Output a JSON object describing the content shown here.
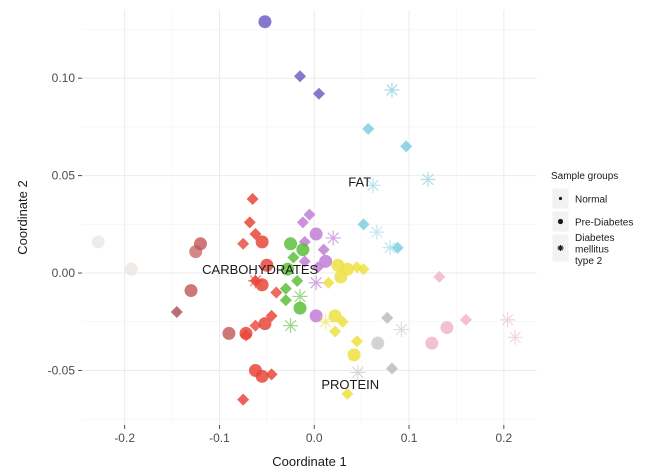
{
  "chart_data": {
    "type": "scatter",
    "xlabel": "Coordinate 1",
    "ylabel": "Coordinate 2",
    "xlim": [
      -0.245,
      0.235
    ],
    "ylim": [
      -0.078,
      0.135
    ],
    "xticks": [
      "-0.2",
      "-0.1",
      "0.0",
      "0.1",
      "0.2"
    ],
    "xtick_values": [
      -0.2,
      -0.1,
      0.0,
      0.1,
      0.2
    ],
    "yticks": [
      "-0.05",
      "0.00",
      "0.05",
      "0.10"
    ],
    "ytick_values": [
      -0.05,
      0.0,
      0.05,
      0.1
    ],
    "grid": true,
    "legend": {
      "title": "Sample groups",
      "placement": "right",
      "entries": [
        {
          "label": "Normal",
          "shape": "dot"
        },
        {
          "label": "Pre-Diabetes",
          "shape": "dot-large"
        },
        {
          "label_lines": [
            "Diabetes",
            "mellitus",
            "type 2"
          ],
          "shape": "asterisk"
        }
      ]
    },
    "annotations": [
      {
        "text": "FAT",
        "x": 0.048,
        "y": 0.047
      },
      {
        "text": "CARBOHYDRATES",
        "x": -0.057,
        "y": 0.002
      },
      {
        "text": "PROTEIN",
        "x": 0.038,
        "y": -0.057
      }
    ],
    "points": [
      {
        "x": -0.052,
        "y": 0.129,
        "shape": "circle",
        "color": "#7b68c9",
        "alpha": 0.9
      },
      {
        "x": -0.015,
        "y": 0.101,
        "shape": "diamond",
        "color": "#7b68c9",
        "alpha": 0.9
      },
      {
        "x": 0.005,
        "y": 0.092,
        "shape": "diamond",
        "color": "#7b68c9",
        "alpha": 0.9
      },
      {
        "x": 0.082,
        "y": 0.094,
        "shape": "asterisk",
        "color": "#8fd2e0",
        "alpha": 0.8
      },
      {
        "x": 0.057,
        "y": 0.074,
        "shape": "diamond",
        "color": "#7ccfe0",
        "alpha": 0.85
      },
      {
        "x": 0.097,
        "y": 0.065,
        "shape": "diamond",
        "color": "#7ccfe0",
        "alpha": 0.85
      },
      {
        "x": 0.12,
        "y": 0.048,
        "shape": "asterisk",
        "color": "#8fd2e0",
        "alpha": 0.7
      },
      {
        "x": 0.062,
        "y": 0.045,
        "shape": "asterisk",
        "color": "#8fd2e0",
        "alpha": 0.6
      },
      {
        "x": 0.052,
        "y": 0.025,
        "shape": "diamond",
        "color": "#7ccfe0",
        "alpha": 0.85
      },
      {
        "x": 0.088,
        "y": 0.013,
        "shape": "diamond",
        "color": "#7ccfe0",
        "alpha": 0.85
      },
      {
        "x": 0.08,
        "y": 0.013,
        "shape": "asterisk",
        "color": "#8fd2e0",
        "alpha": 0.6
      },
      {
        "x": 0.066,
        "y": 0.021,
        "shape": "asterisk",
        "color": "#8fd2e0",
        "alpha": 0.5
      },
      {
        "x": -0.065,
        "y": 0.038,
        "shape": "diamond",
        "color": "#e8473a",
        "alpha": 0.85
      },
      {
        "x": -0.068,
        "y": 0.026,
        "shape": "diamond",
        "color": "#e8473a",
        "alpha": 0.85
      },
      {
        "x": -0.062,
        "y": 0.02,
        "shape": "diamond",
        "color": "#e8473a",
        "alpha": 0.85
      },
      {
        "x": -0.055,
        "y": 0.016,
        "shape": "circle",
        "color": "#e8473a",
        "alpha": 0.85
      },
      {
        "x": -0.075,
        "y": 0.015,
        "shape": "diamond",
        "color": "#e8473a",
        "alpha": 0.8
      },
      {
        "x": -0.12,
        "y": 0.015,
        "shape": "circle",
        "color": "#c05555",
        "alpha": 0.8
      },
      {
        "x": -0.125,
        "y": 0.011,
        "shape": "circle",
        "color": "#c05555",
        "alpha": 0.7
      },
      {
        "x": -0.05,
        "y": 0.004,
        "shape": "circle",
        "color": "#e8473a",
        "alpha": 0.85
      },
      {
        "x": -0.062,
        "y": -0.004,
        "shape": "diamond",
        "color": "#e8473a",
        "alpha": 0.85
      },
      {
        "x": -0.062,
        "y": -0.004,
        "shape": "asterisk",
        "color": "#e8473a",
        "alpha": 0.7
      },
      {
        "x": -0.055,
        "y": -0.006,
        "shape": "circle",
        "color": "#e8473a",
        "alpha": 0.85
      },
      {
        "x": -0.04,
        "y": -0.01,
        "shape": "diamond",
        "color": "#e8473a",
        "alpha": 0.8
      },
      {
        "x": -0.13,
        "y": -0.009,
        "shape": "circle",
        "color": "#c05555",
        "alpha": 0.8
      },
      {
        "x": -0.145,
        "y": -0.02,
        "shape": "diamond",
        "color": "#b05560",
        "alpha": 0.85
      },
      {
        "x": -0.045,
        "y": -0.022,
        "shape": "diamond",
        "color": "#e8473a",
        "alpha": 0.85
      },
      {
        "x": -0.052,
        "y": -0.026,
        "shape": "circle",
        "color": "#e8473a",
        "alpha": 0.85
      },
      {
        "x": -0.062,
        "y": -0.027,
        "shape": "diamond",
        "color": "#e8473a",
        "alpha": 0.8
      },
      {
        "x": -0.09,
        "y": -0.031,
        "shape": "circle",
        "color": "#c05555",
        "alpha": 0.8
      },
      {
        "x": -0.072,
        "y": -0.031,
        "shape": "circle",
        "color": "#e8473a",
        "alpha": 0.85
      },
      {
        "x": -0.072,
        "y": -0.032,
        "shape": "diamond",
        "color": "#e8473a",
        "alpha": 0.8
      },
      {
        "x": -0.062,
        "y": -0.05,
        "shape": "circle",
        "color": "#e8473a",
        "alpha": 0.85
      },
      {
        "x": -0.055,
        "y": -0.053,
        "shape": "circle",
        "color": "#e8473a",
        "alpha": 0.85
      },
      {
        "x": -0.045,
        "y": -0.052,
        "shape": "diamond",
        "color": "#e8473a",
        "alpha": 0.85
      },
      {
        "x": -0.075,
        "y": -0.065,
        "shape": "diamond",
        "color": "#e8473a",
        "alpha": 0.85
      },
      {
        "x": -0.228,
        "y": 0.016,
        "shape": "circle",
        "color": "#e5e5e5",
        "alpha": 0.7
      },
      {
        "x": -0.193,
        "y": 0.002,
        "shape": "circle",
        "color": "#e9e3dd",
        "alpha": 0.7
      },
      {
        "x": -0.005,
        "y": 0.03,
        "shape": "diamond",
        "color": "#c27fd6",
        "alpha": 0.85
      },
      {
        "x": -0.012,
        "y": 0.026,
        "shape": "diamond",
        "color": "#c27fd6",
        "alpha": 0.85
      },
      {
        "x": 0.002,
        "y": 0.02,
        "shape": "circle",
        "color": "#c27fd6",
        "alpha": 0.85
      },
      {
        "x": -0.01,
        "y": 0.016,
        "shape": "diamond",
        "color": "#c27fd6",
        "alpha": 0.85
      },
      {
        "x": 0.02,
        "y": 0.018,
        "shape": "asterisk",
        "color": "#c27fd6",
        "alpha": 0.7
      },
      {
        "x": 0.01,
        "y": 0.012,
        "shape": "diamond",
        "color": "#c27fd6",
        "alpha": 0.85
      },
      {
        "x": 0.012,
        "y": 0.006,
        "shape": "circle",
        "color": "#c27fd6",
        "alpha": 0.85
      },
      {
        "x": -0.01,
        "y": 0.006,
        "shape": "diamond",
        "color": "#c27fd6",
        "alpha": 0.85
      },
      {
        "x": 0.004,
        "y": 0.003,
        "shape": "diamond",
        "color": "#c27fd6",
        "alpha": 0.85
      },
      {
        "x": 0.002,
        "y": -0.005,
        "shape": "asterisk",
        "color": "#c27fd6",
        "alpha": 0.7
      },
      {
        "x": 0.002,
        "y": -0.022,
        "shape": "circle",
        "color": "#c27fd6",
        "alpha": 0.85
      },
      {
        "x": -0.025,
        "y": 0.015,
        "shape": "circle",
        "color": "#5cbf3c",
        "alpha": 0.85
      },
      {
        "x": -0.012,
        "y": 0.012,
        "shape": "circle",
        "color": "#5cbf3c",
        "alpha": 0.85
      },
      {
        "x": -0.022,
        "y": 0.008,
        "shape": "diamond",
        "color": "#5cbf3c",
        "alpha": 0.85
      },
      {
        "x": -0.028,
        "y": 0.002,
        "shape": "circle",
        "color": "#5cbf3c",
        "alpha": 0.85
      },
      {
        "x": -0.018,
        "y": -0.004,
        "shape": "diamond",
        "color": "#5cbf3c",
        "alpha": 0.85
      },
      {
        "x": -0.03,
        "y": -0.008,
        "shape": "diamond",
        "color": "#5cbf3c",
        "alpha": 0.85
      },
      {
        "x": -0.015,
        "y": -0.012,
        "shape": "asterisk",
        "color": "#5cbf3c",
        "alpha": 0.6
      },
      {
        "x": -0.015,
        "y": -0.018,
        "shape": "circle",
        "color": "#5cbf3c",
        "alpha": 0.85
      },
      {
        "x": -0.03,
        "y": -0.014,
        "shape": "diamond",
        "color": "#5cbf3c",
        "alpha": 0.85
      },
      {
        "x": -0.025,
        "y": -0.027,
        "shape": "asterisk",
        "color": "#5cbf3c",
        "alpha": 0.6
      },
      {
        "x": 0.025,
        "y": 0.004,
        "shape": "circle",
        "color": "#eee042",
        "alpha": 0.85
      },
      {
        "x": 0.035,
        "y": 0.002,
        "shape": "circle",
        "color": "#eee042",
        "alpha": 0.85
      },
      {
        "x": 0.045,
        "y": 0.003,
        "shape": "diamond",
        "color": "#eee042",
        "alpha": 0.85
      },
      {
        "x": 0.052,
        "y": 0.002,
        "shape": "diamond",
        "color": "#eee042",
        "alpha": 0.85
      },
      {
        "x": 0.028,
        "y": -0.002,
        "shape": "circle",
        "color": "#eee042",
        "alpha": 0.85
      },
      {
        "x": 0.015,
        "y": -0.005,
        "shape": "diamond",
        "color": "#eee042",
        "alpha": 0.85
      },
      {
        "x": 0.022,
        "y": -0.022,
        "shape": "circle",
        "color": "#eee042",
        "alpha": 0.85
      },
      {
        "x": 0.03,
        "y": -0.025,
        "shape": "diamond",
        "color": "#eee042",
        "alpha": 0.85
      },
      {
        "x": 0.012,
        "y": -0.025,
        "shape": "asterisk",
        "color": "#eee042",
        "alpha": 0.6
      },
      {
        "x": 0.022,
        "y": -0.03,
        "shape": "diamond",
        "color": "#eee042",
        "alpha": 0.85
      },
      {
        "x": 0.045,
        "y": -0.035,
        "shape": "diamond",
        "color": "#eee042",
        "alpha": 0.85
      },
      {
        "x": 0.042,
        "y": -0.042,
        "shape": "circle",
        "color": "#eee042",
        "alpha": 0.85
      },
      {
        "x": 0.035,
        "y": -0.062,
        "shape": "diamond",
        "color": "#eee042",
        "alpha": 0.85
      },
      {
        "x": 0.077,
        "y": -0.023,
        "shape": "diamond",
        "color": "#b8b8b8",
        "alpha": 0.8
      },
      {
        "x": 0.067,
        "y": -0.036,
        "shape": "circle",
        "color": "#c8c8c8",
        "alpha": 0.8
      },
      {
        "x": 0.082,
        "y": -0.049,
        "shape": "diamond",
        "color": "#b8b8b8",
        "alpha": 0.8
      },
      {
        "x": 0.046,
        "y": -0.051,
        "shape": "asterisk",
        "color": "#c8c8c8",
        "alpha": 0.7
      },
      {
        "x": 0.092,
        "y": -0.029,
        "shape": "asterisk",
        "color": "#c8c8c8",
        "alpha": 0.6
      },
      {
        "x": 0.132,
        "y": -0.002,
        "shape": "diamond",
        "color": "#f0b3c4",
        "alpha": 0.8
      },
      {
        "x": 0.16,
        "y": -0.024,
        "shape": "diamond",
        "color": "#f0b3c4",
        "alpha": 0.8
      },
      {
        "x": 0.14,
        "y": -0.028,
        "shape": "circle",
        "color": "#f0b3c4",
        "alpha": 0.8
      },
      {
        "x": 0.124,
        "y": -0.036,
        "shape": "circle",
        "color": "#f0b3c4",
        "alpha": 0.8
      },
      {
        "x": 0.204,
        "y": -0.024,
        "shape": "asterisk",
        "color": "#f0c3d0",
        "alpha": 0.7
      },
      {
        "x": 0.212,
        "y": -0.033,
        "shape": "asterisk",
        "color": "#f0c3d0",
        "alpha": 0.7
      }
    ]
  }
}
